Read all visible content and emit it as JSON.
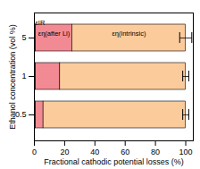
{
  "chart_data": {
    "type": "bar",
    "orientation": "horizontal",
    "stacked": true,
    "x_label": "Fractional cathodic potential losses (%)",
    "y_label": "Ethanol concentration (vol %)",
    "categories": [
      "5",
      "1",
      "0.5"
    ],
    "series": [
      {
        "name": "εIR",
        "color": "#d43a55",
        "values": [
          1,
          1,
          1
        ]
      },
      {
        "name": "εη(after Li)",
        "color": "#f28a93",
        "values": [
          24,
          16,
          5
        ]
      },
      {
        "name": "εη(intrinsic)",
        "color": "#fccb9c",
        "values": [
          75,
          83,
          94
        ],
        "errors": [
          4,
          2,
          2
        ]
      }
    ],
    "xlim": [
      0,
      105
    ],
    "xticks": [
      0,
      20,
      40,
      60,
      80,
      100
    ]
  }
}
